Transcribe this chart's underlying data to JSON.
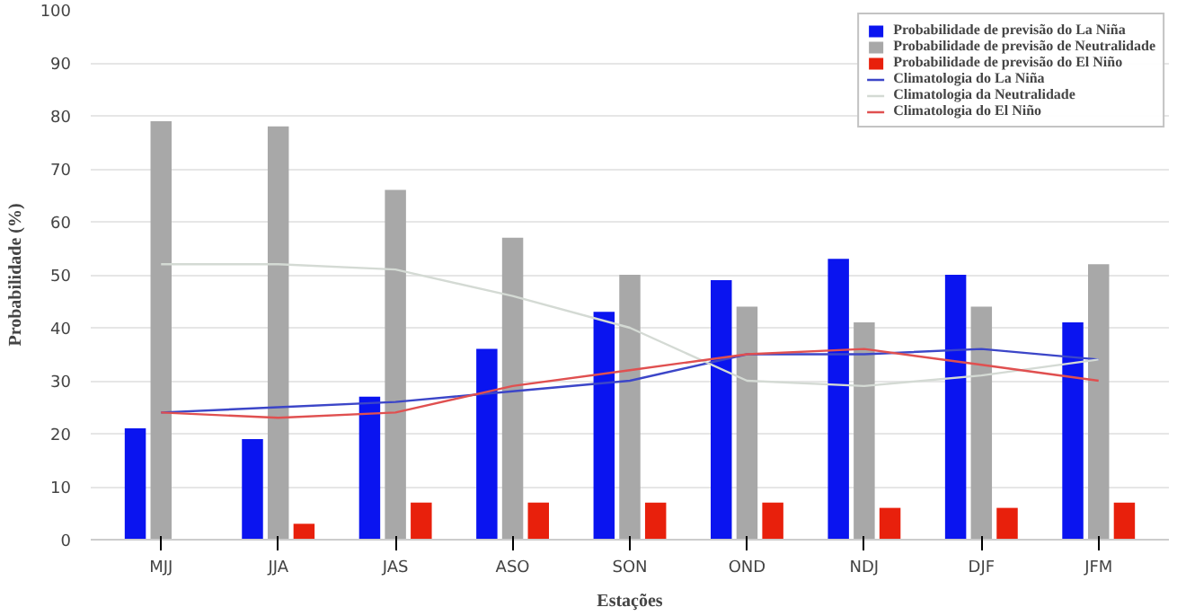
{
  "chart_data": {
    "type": "bar",
    "xlabel": "Estações",
    "ylabel": "Probabilidade (%)",
    "categories": [
      "MJJ",
      "JJA",
      "JAS",
      "ASO",
      "SON",
      "OND",
      "NDJ",
      "DJF",
      "JFM"
    ],
    "series": [
      {
        "name": "Probabilidade de previsão do La Niña",
        "color": "#0a14f0",
        "values": [
          21,
          19,
          27,
          36,
          43,
          49,
          53,
          50,
          41
        ]
      },
      {
        "name": "Probabilidade de previsão de Neutralidade",
        "color": "#a8a8a8",
        "values": [
          79,
          78,
          66,
          57,
          50,
          44,
          41,
          44,
          52
        ]
      },
      {
        "name": "Probabilidade de previsão do El Niño",
        "color": "#e8200c",
        "values": [
          0,
          3,
          7,
          7,
          7,
          7,
          6,
          6,
          7
        ]
      },
      {
        "name": "Climatologia do La Niña",
        "type": "line",
        "color": "#3c46c8",
        "values": [
          24,
          25,
          26,
          28,
          30,
          35,
          35,
          36,
          34
        ]
      },
      {
        "name": "Climatologia da Neutralidade",
        "type": "line",
        "color": "#d4dad4",
        "values": [
          52,
          52,
          51,
          46,
          40,
          30,
          29,
          31,
          34
        ]
      },
      {
        "name": "Climatologia do El Niño",
        "type": "line",
        "color": "#e05050",
        "values": [
          24,
          23,
          24,
          29,
          32,
          35,
          36,
          33,
          30
        ]
      }
    ],
    "ylim": [
      0,
      100
    ],
    "yticks": [
      0,
      10,
      20,
      30,
      40,
      50,
      60,
      70,
      80,
      90,
      100
    ],
    "grid": "y",
    "legend": "top right"
  }
}
